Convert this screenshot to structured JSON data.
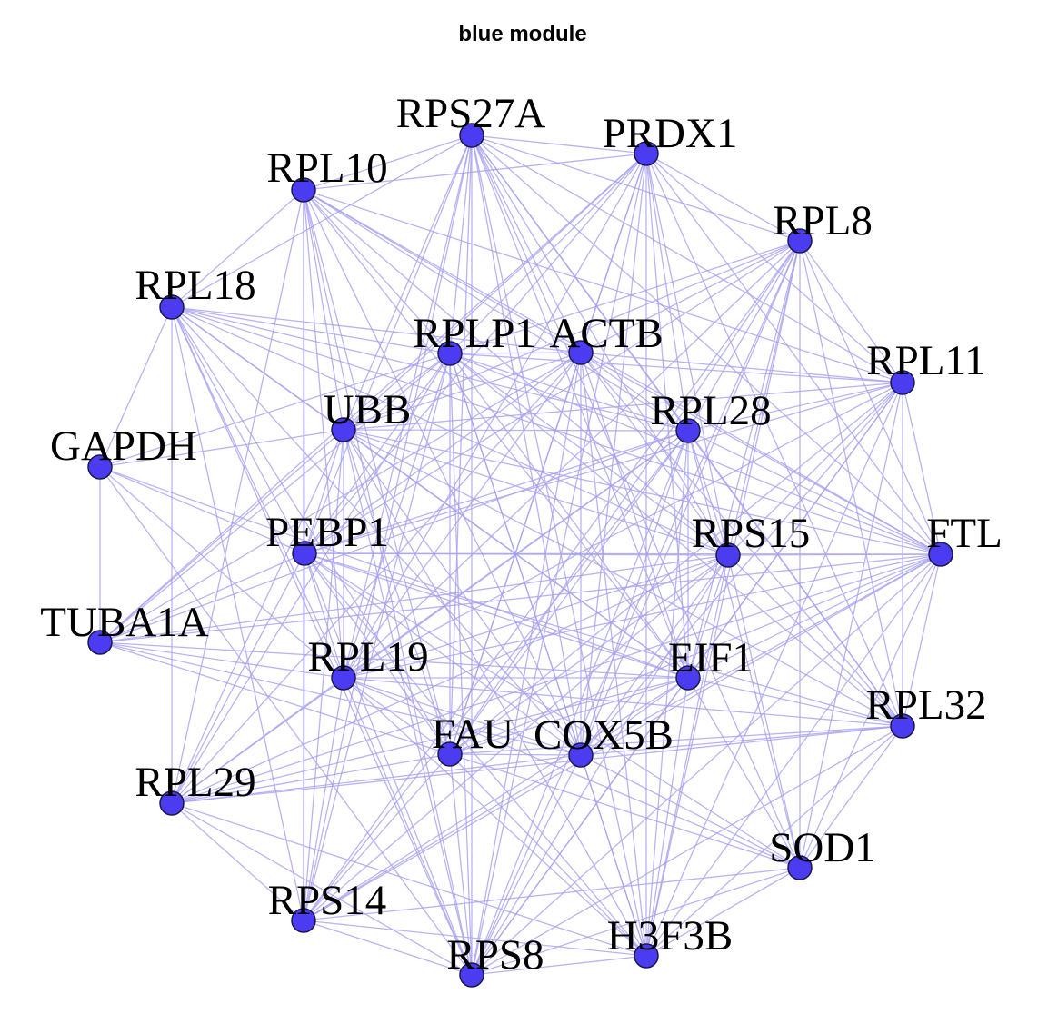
{
  "title": "blue module",
  "colors": {
    "node_fill": "#4b3cf2",
    "node_stroke": "#1a1a4a",
    "edge": "#a8a0f0",
    "label": "#000000"
  },
  "nodes": [
    {
      "id": "RPS27A",
      "label": "RPS27A"
    },
    {
      "id": "PRDX1",
      "label": "PRDX1"
    },
    {
      "id": "RPL10",
      "label": "RPL10"
    },
    {
      "id": "RPL8",
      "label": "RPL8"
    },
    {
      "id": "RPL18",
      "label": "RPL18"
    },
    {
      "id": "RPLP1",
      "label": "RPLP1"
    },
    {
      "id": "ACTB",
      "label": "ACTB"
    },
    {
      "id": "RPL11",
      "label": "RPL11"
    },
    {
      "id": "UBB",
      "label": "UBB"
    },
    {
      "id": "RPL28",
      "label": "RPL28"
    },
    {
      "id": "GAPDH",
      "label": "GAPDH"
    },
    {
      "id": "PEBP1",
      "label": "PEBP1"
    },
    {
      "id": "RPS15",
      "label": "RPS15"
    },
    {
      "id": "FTL",
      "label": "FTL"
    },
    {
      "id": "TUBA1A",
      "label": "TUBA1A"
    },
    {
      "id": "RPL19",
      "label": "RPL19"
    },
    {
      "id": "EIF1",
      "label": "EIF1"
    },
    {
      "id": "RPL32",
      "label": "RPL32"
    },
    {
      "id": "FAU",
      "label": "FAU"
    },
    {
      "id": "COX5B",
      "label": "COX5B"
    },
    {
      "id": "RPL29",
      "label": "RPL29"
    },
    {
      "id": "SOD1",
      "label": "SOD1"
    },
    {
      "id": "RPS14",
      "label": "RPS14"
    },
    {
      "id": "H3F3B",
      "label": "H3F3B"
    },
    {
      "id": "RPS8",
      "label": "RPS8"
    }
  ],
  "edges": [
    [
      "RPS27A",
      "PRDX1"
    ],
    [
      "RPS27A",
      "RPL10"
    ],
    [
      "RPS27A",
      "RPL8"
    ],
    [
      "RPS27A",
      "RPLP1"
    ],
    [
      "RPS27A",
      "ACTB"
    ],
    [
      "RPS27A",
      "RPL11"
    ],
    [
      "RPS27A",
      "UBB"
    ],
    [
      "RPS27A",
      "RPL28"
    ],
    [
      "RPS27A",
      "PEBP1"
    ],
    [
      "RPS27A",
      "RPS15"
    ],
    [
      "RPS27A",
      "FTL"
    ],
    [
      "RPS27A",
      "RPL19"
    ],
    [
      "RPS27A",
      "EIF1"
    ],
    [
      "RPS27A",
      "RPL32"
    ],
    [
      "RPS27A",
      "FAU"
    ],
    [
      "RPS27A",
      "COX5B"
    ],
    [
      "RPS27A",
      "RPS14"
    ],
    [
      "RPS27A",
      "RPS8"
    ],
    [
      "RPS27A",
      "H3F3B"
    ],
    [
      "RPS27A",
      "RPL18"
    ],
    [
      "RPS27A",
      "SOD1"
    ],
    [
      "PRDX1",
      "RPL8"
    ],
    [
      "PRDX1",
      "RPL10"
    ],
    [
      "PRDX1",
      "RPLP1"
    ],
    [
      "PRDX1",
      "ACTB"
    ],
    [
      "PRDX1",
      "RPL11"
    ],
    [
      "PRDX1",
      "UBB"
    ],
    [
      "PRDX1",
      "RPL28"
    ],
    [
      "PRDX1",
      "PEBP1"
    ],
    [
      "PRDX1",
      "RPS15"
    ],
    [
      "PRDX1",
      "FTL"
    ],
    [
      "PRDX1",
      "RPL19"
    ],
    [
      "PRDX1",
      "EIF1"
    ],
    [
      "PRDX1",
      "COX5B"
    ],
    [
      "PRDX1",
      "FAU"
    ],
    [
      "PRDX1",
      "RPS8"
    ],
    [
      "PRDX1",
      "TUBA1A"
    ],
    [
      "PRDX1",
      "H3F3B"
    ],
    [
      "PRDX1",
      "RPL32"
    ],
    [
      "RPL10",
      "RPL18"
    ],
    [
      "RPL10",
      "RPLP1"
    ],
    [
      "RPL10",
      "ACTB"
    ],
    [
      "RPL10",
      "UBB"
    ],
    [
      "RPL10",
      "RPL28"
    ],
    [
      "RPL10",
      "PEBP1"
    ],
    [
      "RPL10",
      "RPS15"
    ],
    [
      "RPL10",
      "RPL19"
    ],
    [
      "RPL10",
      "FAU"
    ],
    [
      "RPL10",
      "COX5B"
    ],
    [
      "RPL10",
      "EIF1"
    ],
    [
      "RPL10",
      "RPL11"
    ],
    [
      "RPL10",
      "RPS14"
    ],
    [
      "RPL10",
      "RPS8"
    ],
    [
      "RPL10",
      "FTL"
    ],
    [
      "RPL10",
      "RPL29"
    ],
    [
      "RPL8",
      "RPL11"
    ],
    [
      "RPL8",
      "RPLP1"
    ],
    [
      "RPL8",
      "ACTB"
    ],
    [
      "RPL8",
      "RPL28"
    ],
    [
      "RPL8",
      "RPS15"
    ],
    [
      "RPL8",
      "FTL"
    ],
    [
      "RPL8",
      "EIF1"
    ],
    [
      "RPL8",
      "COX5B"
    ],
    [
      "RPL8",
      "FAU"
    ],
    [
      "RPL8",
      "UBB"
    ],
    [
      "RPL8",
      "PEBP1"
    ],
    [
      "RPL8",
      "RPL19"
    ],
    [
      "RPL8",
      "RPL32"
    ],
    [
      "RPL8",
      "SOD1"
    ],
    [
      "RPL8",
      "H3F3B"
    ],
    [
      "RPL8",
      "RPS8"
    ],
    [
      "RPL8",
      "RPS14"
    ],
    [
      "RPL18",
      "UBB"
    ],
    [
      "RPL18",
      "RPLP1"
    ],
    [
      "RPL18",
      "ACTB"
    ],
    [
      "RPL18",
      "PEBP1"
    ],
    [
      "RPL18",
      "RPL19"
    ],
    [
      "RPL18",
      "RPL28"
    ],
    [
      "RPL18",
      "RPS15"
    ],
    [
      "RPL18",
      "EIF1"
    ],
    [
      "RPL18",
      "FAU"
    ],
    [
      "RPL18",
      "COX5B"
    ],
    [
      "RPL18",
      "GAPDH"
    ],
    [
      "RPL18",
      "RPL29"
    ],
    [
      "RPL18",
      "RPS14"
    ],
    [
      "RPL18",
      "RPS8"
    ],
    [
      "RPL18",
      "FTL"
    ],
    [
      "RPLP1",
      "ACTB"
    ],
    [
      "RPLP1",
      "UBB"
    ],
    [
      "RPLP1",
      "RPL28"
    ],
    [
      "RPLP1",
      "PEBP1"
    ],
    [
      "RPLP1",
      "RPS15"
    ],
    [
      "RPLP1",
      "RPL19"
    ],
    [
      "RPLP1",
      "EIF1"
    ],
    [
      "RPLP1",
      "FAU"
    ],
    [
      "RPLP1",
      "COX5B"
    ],
    [
      "RPLP1",
      "RPL11"
    ],
    [
      "RPLP1",
      "FTL"
    ],
    [
      "RPLP1",
      "RPL32"
    ],
    [
      "RPLP1",
      "RPS8"
    ],
    [
      "RPLP1",
      "RPS14"
    ],
    [
      "RPLP1",
      "RPL29"
    ],
    [
      "RPLP1",
      "TUBA1A"
    ],
    [
      "RPLP1",
      "GAPDH"
    ],
    [
      "RPLP1",
      "H3F3B"
    ],
    [
      "ACTB",
      "UBB"
    ],
    [
      "ACTB",
      "RPL28"
    ],
    [
      "ACTB",
      "PEBP1"
    ],
    [
      "ACTB",
      "RPS15"
    ],
    [
      "ACTB",
      "RPL19"
    ],
    [
      "ACTB",
      "EIF1"
    ],
    [
      "ACTB",
      "FAU"
    ],
    [
      "ACTB",
      "COX5B"
    ],
    [
      "ACTB",
      "RPL11"
    ],
    [
      "ACTB",
      "FTL"
    ],
    [
      "ACTB",
      "RPL32"
    ],
    [
      "ACTB",
      "TUBA1A"
    ],
    [
      "ACTB",
      "RPS8"
    ],
    [
      "ACTB",
      "RPL29"
    ],
    [
      "ACTB",
      "H3F3B"
    ],
    [
      "RPL11",
      "RPL28"
    ],
    [
      "RPL11",
      "RPS15"
    ],
    [
      "RPL11",
      "FTL"
    ],
    [
      "RPL11",
      "EIF1"
    ],
    [
      "RPL11",
      "COX5B"
    ],
    [
      "RPL11",
      "FAU"
    ],
    [
      "RPL11",
      "UBB"
    ],
    [
      "RPL11",
      "PEBP1"
    ],
    [
      "RPL11",
      "RPL19"
    ],
    [
      "RPL11",
      "RPL32"
    ],
    [
      "RPL11",
      "SOD1"
    ],
    [
      "RPL11",
      "H3F3B"
    ],
    [
      "RPL11",
      "RPS8"
    ],
    [
      "UBB",
      "RPL28"
    ],
    [
      "UBB",
      "PEBP1"
    ],
    [
      "UBB",
      "RPS15"
    ],
    [
      "UBB",
      "RPL19"
    ],
    [
      "UBB",
      "EIF1"
    ],
    [
      "UBB",
      "FAU"
    ],
    [
      "UBB",
      "COX5B"
    ],
    [
      "UBB",
      "GAPDH"
    ],
    [
      "UBB",
      "TUBA1A"
    ],
    [
      "UBB",
      "RPL29"
    ],
    [
      "UBB",
      "RPS14"
    ],
    [
      "UBB",
      "RPS8"
    ],
    [
      "UBB",
      "FTL"
    ],
    [
      "UBB",
      "H3F3B"
    ],
    [
      "UBB",
      "RPL32"
    ],
    [
      "RPL28",
      "PEBP1"
    ],
    [
      "RPL28",
      "RPS15"
    ],
    [
      "RPL28",
      "FTL"
    ],
    [
      "RPL28",
      "RPL19"
    ],
    [
      "RPL28",
      "EIF1"
    ],
    [
      "RPL28",
      "FAU"
    ],
    [
      "RPL28",
      "COX5B"
    ],
    [
      "RPL28",
      "RPL32"
    ],
    [
      "RPL28",
      "SOD1"
    ],
    [
      "RPL28",
      "H3F3B"
    ],
    [
      "RPL28",
      "RPS8"
    ],
    [
      "RPL28",
      "RPS14"
    ],
    [
      "RPL28",
      "RPL29"
    ],
    [
      "RPL28",
      "TUBA1A"
    ],
    [
      "GAPDH",
      "PEBP1"
    ],
    [
      "GAPDH",
      "RPL19"
    ],
    [
      "GAPDH",
      "TUBA1A"
    ],
    [
      "GAPDH",
      "RPS8"
    ],
    [
      "GAPDH",
      "EIF1"
    ],
    [
      "PEBP1",
      "RPS15"
    ],
    [
      "PEBP1",
      "RPL19"
    ],
    [
      "PEBP1",
      "EIF1"
    ],
    [
      "PEBP1",
      "FAU"
    ],
    [
      "PEBP1",
      "COX5B"
    ],
    [
      "PEBP1",
      "FTL"
    ],
    [
      "PEBP1",
      "RPL32"
    ],
    [
      "PEBP1",
      "RPL29"
    ],
    [
      "PEBP1",
      "RPS14"
    ],
    [
      "PEBP1",
      "RPS8"
    ],
    [
      "PEBP1",
      "TUBA1A"
    ],
    [
      "PEBP1",
      "H3F3B"
    ],
    [
      "PEBP1",
      "SOD1"
    ],
    [
      "RPS15",
      "FTL"
    ],
    [
      "RPS15",
      "RPL19"
    ],
    [
      "RPS15",
      "EIF1"
    ],
    [
      "RPS15",
      "FAU"
    ],
    [
      "RPS15",
      "COX5B"
    ],
    [
      "RPS15",
      "RPL32"
    ],
    [
      "RPS15",
      "SOD1"
    ],
    [
      "RPS15",
      "H3F3B"
    ],
    [
      "RPS15",
      "RPS8"
    ],
    [
      "RPS15",
      "RPS14"
    ],
    [
      "RPS15",
      "RPL29"
    ],
    [
      "FTL",
      "EIF1"
    ],
    [
      "FTL",
      "COX5B"
    ],
    [
      "FTL",
      "FAU"
    ],
    [
      "FTL",
      "RPL19"
    ],
    [
      "FTL",
      "RPL32"
    ],
    [
      "FTL",
      "SOD1"
    ],
    [
      "FTL",
      "H3F3B"
    ],
    [
      "FTL",
      "RPS8"
    ],
    [
      "FTL",
      "RPS14"
    ],
    [
      "FTL",
      "RPL29"
    ],
    [
      "FTL",
      "TUBA1A"
    ],
    [
      "TUBA1A",
      "RPL19"
    ],
    [
      "TUBA1A",
      "FAU"
    ],
    [
      "TUBA1A",
      "COX5B"
    ],
    [
      "TUBA1A",
      "RPS15"
    ],
    [
      "TUBA1A",
      "EIF1"
    ],
    [
      "RPL19",
      "EIF1"
    ],
    [
      "RPL19",
      "FAU"
    ],
    [
      "RPL19",
      "COX5B"
    ],
    [
      "RPL19",
      "RPL32"
    ],
    [
      "RPL19",
      "RPL29"
    ],
    [
      "RPL19",
      "RPS14"
    ],
    [
      "RPL19",
      "RPS8"
    ],
    [
      "RPL19",
      "H3F3B"
    ],
    [
      "RPL19",
      "SOD1"
    ],
    [
      "EIF1",
      "FAU"
    ],
    [
      "EIF1",
      "COX5B"
    ],
    [
      "EIF1",
      "RPL32"
    ],
    [
      "EIF1",
      "SOD1"
    ],
    [
      "EIF1",
      "H3F3B"
    ],
    [
      "EIF1",
      "RPS8"
    ],
    [
      "EIF1",
      "RPS14"
    ],
    [
      "EIF1",
      "RPL29"
    ],
    [
      "RPL32",
      "COX5B"
    ],
    [
      "RPL32",
      "FAU"
    ],
    [
      "RPL32",
      "SOD1"
    ],
    [
      "RPL32",
      "H3F3B"
    ],
    [
      "RPL32",
      "RPS8"
    ],
    [
      "RPL32",
      "RPL29"
    ],
    [
      "FAU",
      "COX5B"
    ],
    [
      "FAU",
      "RPL29"
    ],
    [
      "FAU",
      "RPS14"
    ],
    [
      "FAU",
      "RPS8"
    ],
    [
      "FAU",
      "H3F3B"
    ],
    [
      "FAU",
      "SOD1"
    ],
    [
      "COX5B",
      "RPL29"
    ],
    [
      "COX5B",
      "RPS14"
    ],
    [
      "COX5B",
      "RPS8"
    ],
    [
      "COX5B",
      "H3F3B"
    ],
    [
      "COX5B",
      "SOD1"
    ],
    [
      "RPL29",
      "RPS14"
    ],
    [
      "RPL29",
      "RPS8"
    ],
    [
      "RPL29",
      "H3F3B"
    ],
    [
      "SOD1",
      "H3F3B"
    ],
    [
      "SOD1",
      "RPS8"
    ],
    [
      "SOD1",
      "RPS14"
    ],
    [
      "RPS14",
      "RPS8"
    ],
    [
      "RPS14",
      "H3F3B"
    ],
    [
      "H3F3B",
      "RPS8"
    ]
  ]
}
